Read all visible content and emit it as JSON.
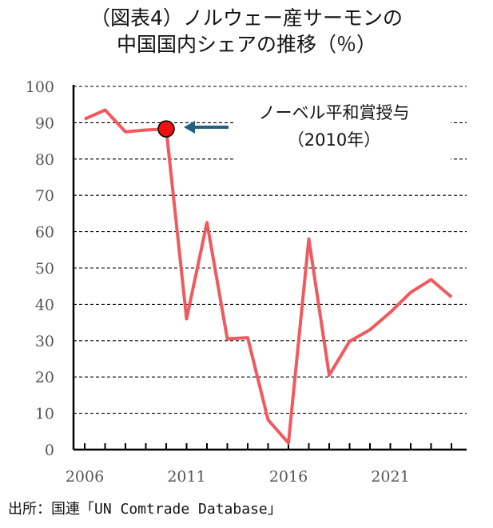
{
  "title_lines": [
    "（図表4）ノルウェー産サーモンの",
    "中国国内シェアの推移（％）"
  ],
  "source": "出所：国連「UN Comtrade Database」",
  "annotation": {
    "line1": "ノーベル平和賞授与",
    "line2": "（2010年）",
    "year": 2010
  },
  "colors": {
    "line": "#f0595d",
    "marker": "#ee1111",
    "arrow": "#245f7f",
    "grid": "#000000"
  },
  "chart_data": {
    "type": "line",
    "x": [
      2006,
      2007,
      2008,
      2009,
      2010,
      2011,
      2012,
      2013,
      2014,
      2015,
      2016,
      2017,
      2018,
      2019,
      2020,
      2021,
      2022,
      2023,
      2024
    ],
    "series": [
      {
        "values": [
          91,
          93.5,
          87.5,
          88,
          88.3,
          36,
          62.5,
          30.5,
          30.8,
          8.2,
          1.8,
          58,
          20.5,
          29.8,
          33,
          37.8,
          43.3,
          46.8,
          42
        ]
      }
    ],
    "x_ticks": [
      "2006",
      "2011",
      "2016",
      "2021"
    ],
    "x_tick_values": [
      2006,
      2011,
      2016,
      2021
    ],
    "y_ticks": [
      "0",
      "10",
      "20",
      "30",
      "40",
      "50",
      "60",
      "70",
      "80",
      "90",
      "100"
    ],
    "ylim": [
      0,
      100
    ],
    "xlim": [
      2006,
      2024
    ],
    "grid": "horizontal dashed",
    "highlight_point": {
      "x": 2010,
      "y": 88.3
    }
  }
}
